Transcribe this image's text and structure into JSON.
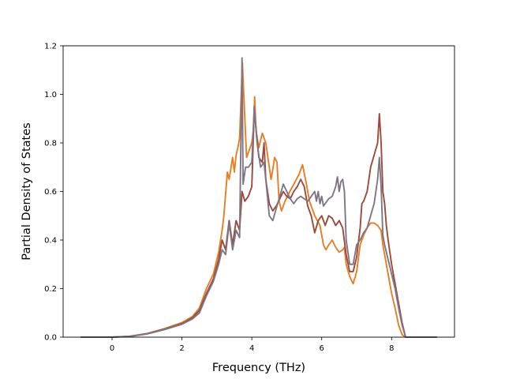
{
  "chart_data": {
    "type": "line",
    "title": "",
    "xlabel": "Frequency (THz)",
    "ylabel": "Partial Density of States",
    "xlim": [
      -1.4,
      9.8
    ],
    "ylim": [
      0,
      1.2
    ],
    "xticks": [
      0,
      2,
      4,
      6,
      8
    ],
    "yticks": [
      0.0,
      0.2,
      0.4,
      0.6,
      0.8,
      1.0,
      1.2
    ],
    "xtick_labels": [
      "0",
      "2",
      "4",
      "6",
      "8"
    ],
    "ytick_labels": [
      "0.0",
      "0.2",
      "0.4",
      "0.6",
      "0.8",
      "1.0",
      "1.2"
    ],
    "grid": false,
    "legend": "none",
    "series": [
      {
        "color": "#e67e22",
        "points": [
          [
            -0.9,
            0
          ],
          [
            0,
            0
          ],
          [
            0.5,
            0.004
          ],
          [
            1.0,
            0.015
          ],
          [
            1.5,
            0.035
          ],
          [
            2.0,
            0.06
          ],
          [
            2.3,
            0.085
          ],
          [
            2.5,
            0.12
          ],
          [
            2.7,
            0.2
          ],
          [
            2.9,
            0.26
          ],
          [
            3.05,
            0.35
          ],
          [
            3.15,
            0.44
          ],
          [
            3.2,
            0.5
          ],
          [
            3.3,
            0.68
          ],
          [
            3.35,
            0.65
          ],
          [
            3.45,
            0.74
          ],
          [
            3.5,
            0.68
          ],
          [
            3.55,
            0.75
          ],
          [
            3.6,
            0.78
          ],
          [
            3.65,
            0.82
          ],
          [
            3.73,
            1.13
          ],
          [
            3.8,
            0.9
          ],
          [
            3.85,
            0.74
          ],
          [
            3.9,
            0.76
          ],
          [
            4.0,
            0.8
          ],
          [
            4.05,
            0.86
          ],
          [
            4.08,
            0.99
          ],
          [
            4.12,
            0.85
          ],
          [
            4.2,
            0.78
          ],
          [
            4.3,
            0.84
          ],
          [
            4.4,
            0.8
          ],
          [
            4.5,
            0.7
          ],
          [
            4.55,
            0.65
          ],
          [
            4.6,
            0.69
          ],
          [
            4.65,
            0.74
          ],
          [
            4.72,
            0.72
          ],
          [
            4.78,
            0.56
          ],
          [
            4.85,
            0.52
          ],
          [
            4.95,
            0.56
          ],
          [
            5.05,
            0.59
          ],
          [
            5.2,
            0.63
          ],
          [
            5.35,
            0.67
          ],
          [
            5.45,
            0.71
          ],
          [
            5.55,
            0.64
          ],
          [
            5.65,
            0.56
          ],
          [
            5.8,
            0.5
          ],
          [
            5.95,
            0.46
          ],
          [
            6.0,
            0.42
          ],
          [
            6.05,
            0.38
          ],
          [
            6.12,
            0.36
          ],
          [
            6.2,
            0.38
          ],
          [
            6.3,
            0.4
          ],
          [
            6.4,
            0.37
          ],
          [
            6.5,
            0.35
          ],
          [
            6.6,
            0.36
          ],
          [
            6.65,
            0.37
          ],
          [
            6.7,
            0.3
          ],
          [
            6.8,
            0.25
          ],
          [
            6.9,
            0.22
          ],
          [
            7.0,
            0.27
          ],
          [
            7.1,
            0.38
          ],
          [
            7.2,
            0.42
          ],
          [
            7.3,
            0.45
          ],
          [
            7.4,
            0.47
          ],
          [
            7.5,
            0.47
          ],
          [
            7.6,
            0.46
          ],
          [
            7.7,
            0.44
          ],
          [
            7.75,
            0.38
          ],
          [
            7.8,
            0.34
          ],
          [
            7.85,
            0.3
          ],
          [
            7.9,
            0.26
          ],
          [
            8.0,
            0.18
          ],
          [
            8.1,
            0.12
          ],
          [
            8.2,
            0.05
          ],
          [
            8.3,
            0.01
          ],
          [
            8.4,
            0
          ],
          [
            9.3,
            0
          ]
        ]
      },
      {
        "color": "#9b4a3c",
        "points": [
          [
            -0.9,
            0
          ],
          [
            0,
            0
          ],
          [
            0.5,
            0.003
          ],
          [
            1.0,
            0.014
          ],
          [
            1.5,
            0.033
          ],
          [
            2.0,
            0.056
          ],
          [
            2.3,
            0.08
          ],
          [
            2.5,
            0.11
          ],
          [
            2.7,
            0.18
          ],
          [
            2.9,
            0.24
          ],
          [
            3.05,
            0.32
          ],
          [
            3.15,
            0.4
          ],
          [
            3.25,
            0.36
          ],
          [
            3.35,
            0.48
          ],
          [
            3.45,
            0.38
          ],
          [
            3.55,
            0.48
          ],
          [
            3.65,
            0.44
          ],
          [
            3.72,
            0.6
          ],
          [
            3.8,
            0.56
          ],
          [
            3.9,
            0.58
          ],
          [
            4.0,
            0.62
          ],
          [
            4.07,
            0.94
          ],
          [
            4.12,
            0.86
          ],
          [
            4.2,
            0.74
          ],
          [
            4.3,
            0.72
          ],
          [
            4.35,
            0.8
          ],
          [
            4.4,
            0.65
          ],
          [
            4.5,
            0.55
          ],
          [
            4.6,
            0.52
          ],
          [
            4.7,
            0.54
          ],
          [
            4.8,
            0.57
          ],
          [
            4.9,
            0.6
          ],
          [
            5.0,
            0.58
          ],
          [
            5.1,
            0.57
          ],
          [
            5.2,
            0.6
          ],
          [
            5.3,
            0.62
          ],
          [
            5.4,
            0.65
          ],
          [
            5.5,
            0.62
          ],
          [
            5.6,
            0.54
          ],
          [
            5.7,
            0.5
          ],
          [
            5.8,
            0.43
          ],
          [
            5.9,
            0.48
          ],
          [
            6.0,
            0.5
          ],
          [
            6.05,
            0.48
          ],
          [
            6.1,
            0.46
          ],
          [
            6.2,
            0.5
          ],
          [
            6.3,
            0.49
          ],
          [
            6.4,
            0.46
          ],
          [
            6.5,
            0.48
          ],
          [
            6.6,
            0.45
          ],
          [
            6.7,
            0.34
          ],
          [
            6.8,
            0.27
          ],
          [
            6.9,
            0.27
          ],
          [
            7.0,
            0.33
          ],
          [
            7.1,
            0.45
          ],
          [
            7.15,
            0.55
          ],
          [
            7.2,
            0.56
          ],
          [
            7.3,
            0.6
          ],
          [
            7.4,
            0.7
          ],
          [
            7.5,
            0.75
          ],
          [
            7.6,
            0.8
          ],
          [
            7.65,
            0.92
          ],
          [
            7.7,
            0.8
          ],
          [
            7.75,
            0.6
          ],
          [
            7.8,
            0.55
          ],
          [
            7.85,
            0.46
          ],
          [
            7.9,
            0.4
          ],
          [
            8.0,
            0.3
          ],
          [
            8.1,
            0.22
          ],
          [
            8.2,
            0.14
          ],
          [
            8.3,
            0.06
          ],
          [
            8.4,
            0
          ],
          [
            9.3,
            0
          ]
        ]
      },
      {
        "color": "#7f7585",
        "points": [
          [
            -0.9,
            0
          ],
          [
            0,
            0
          ],
          [
            0.5,
            0.003
          ],
          [
            1.0,
            0.013
          ],
          [
            1.5,
            0.031
          ],
          [
            2.0,
            0.053
          ],
          [
            2.3,
            0.075
          ],
          [
            2.5,
            0.1
          ],
          [
            2.7,
            0.17
          ],
          [
            2.9,
            0.23
          ],
          [
            3.05,
            0.3
          ],
          [
            3.15,
            0.36
          ],
          [
            3.25,
            0.34
          ],
          [
            3.35,
            0.47
          ],
          [
            3.45,
            0.36
          ],
          [
            3.55,
            0.44
          ],
          [
            3.65,
            0.41
          ],
          [
            3.72,
            1.15
          ],
          [
            3.75,
            0.63
          ],
          [
            3.82,
            0.7
          ],
          [
            3.9,
            0.7
          ],
          [
            4.0,
            0.72
          ],
          [
            4.07,
            0.95
          ],
          [
            4.15,
            0.8
          ],
          [
            4.25,
            0.7
          ],
          [
            4.35,
            0.72
          ],
          [
            4.42,
            0.62
          ],
          [
            4.5,
            0.5
          ],
          [
            4.6,
            0.48
          ],
          [
            4.7,
            0.53
          ],
          [
            4.8,
            0.58
          ],
          [
            4.9,
            0.63
          ],
          [
            5.0,
            0.6
          ],
          [
            5.1,
            0.57
          ],
          [
            5.2,
            0.55
          ],
          [
            5.3,
            0.57
          ],
          [
            5.4,
            0.58
          ],
          [
            5.5,
            0.57
          ],
          [
            5.6,
            0.56
          ],
          [
            5.7,
            0.58
          ],
          [
            5.8,
            0.6
          ],
          [
            5.85,
            0.56
          ],
          [
            5.9,
            0.6
          ],
          [
            5.95,
            0.55
          ],
          [
            6.0,
            0.58
          ],
          [
            6.05,
            0.54
          ],
          [
            6.1,
            0.55
          ],
          [
            6.2,
            0.57
          ],
          [
            6.3,
            0.58
          ],
          [
            6.4,
            0.62
          ],
          [
            6.45,
            0.66
          ],
          [
            6.5,
            0.6
          ],
          [
            6.55,
            0.64
          ],
          [
            6.6,
            0.65
          ],
          [
            6.65,
            0.6
          ],
          [
            6.7,
            0.4
          ],
          [
            6.8,
            0.3
          ],
          [
            6.9,
            0.3
          ],
          [
            7.0,
            0.38
          ],
          [
            7.1,
            0.4
          ],
          [
            7.2,
            0.43
          ],
          [
            7.3,
            0.45
          ],
          [
            7.4,
            0.5
          ],
          [
            7.5,
            0.55
          ],
          [
            7.6,
            0.65
          ],
          [
            7.65,
            0.74
          ],
          [
            7.7,
            0.62
          ],
          [
            7.75,
            0.42
          ],
          [
            7.8,
            0.38
          ],
          [
            7.85,
            0.35
          ],
          [
            7.9,
            0.32
          ],
          [
            8.0,
            0.26
          ],
          [
            8.1,
            0.2
          ],
          [
            8.2,
            0.12
          ],
          [
            8.3,
            0.05
          ],
          [
            8.4,
            0
          ],
          [
            9.3,
            0
          ]
        ]
      }
    ]
  }
}
